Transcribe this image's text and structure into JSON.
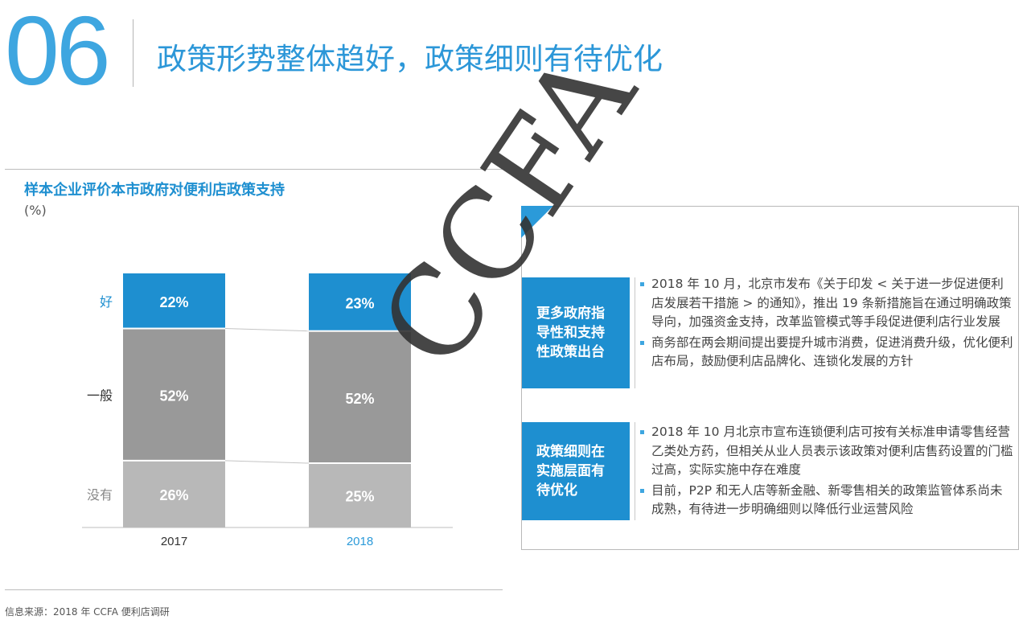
{
  "header": {
    "section_number": "06",
    "title": "政策形势整体趋好，政策细则有待优化"
  },
  "chart_data": {
    "type": "bar",
    "stacked": true,
    "percent": true,
    "title": "样本企业评价本市政府对便利店政策支持",
    "unit": "(%)",
    "categories": [
      "2017",
      "2018"
    ],
    "category_colors": [
      "#333333",
      "#2b9ad9"
    ],
    "series": [
      {
        "name": "好",
        "values": [
          22,
          23
        ],
        "color": "#1e8fd0",
        "label_color": "#1e8fd0"
      },
      {
        "name": "一般",
        "values": [
          52,
          52
        ],
        "color": "#999999",
        "label_color": "#333333"
      },
      {
        "name": "没有",
        "values": [
          26,
          25
        ],
        "color": "#b8b8b8",
        "label_color": "#888888"
      }
    ],
    "value_labels": [
      [
        "22%",
        "23%"
      ],
      [
        "52%",
        "52%"
      ],
      [
        "26%",
        "25%"
      ]
    ],
    "ylim": [
      0,
      100
    ]
  },
  "panel": {
    "sections": [
      {
        "heading": "更多政府指导性和支持性政策出台",
        "bullets": [
          "2018 年 10 月，北京市发布《关于印发 < 关于进一步促进便利店发展若干措施 > 的通知》，推出 19 条新措施旨在通过明确政策导向，加强资金支持，改革监管模式等手段促进便利店行业发展",
          "商务部在两会期间提出要提升城市消费，促进消费升级，优化便利店布局，鼓励便利店品牌化、连锁化发展的方针"
        ]
      },
      {
        "heading": "政策细则在实施层面有待优化",
        "bullets": [
          "2018 年 10 月北京市宣布连锁便利店可按有关标准申请零售经营乙类处方药，但相关从业人员表示该政策对便利店售药设置的门槛过高，实际实施中存在难度",
          "目前，P2P 和无人店等新金融、新零售相关的政策监管体系尚未成熟，有待进一步明确细则以降低行业运营风险"
        ]
      }
    ]
  },
  "watermark": "CCFA",
  "source": "信息来源：2018 年 CCFA 便利店调研"
}
